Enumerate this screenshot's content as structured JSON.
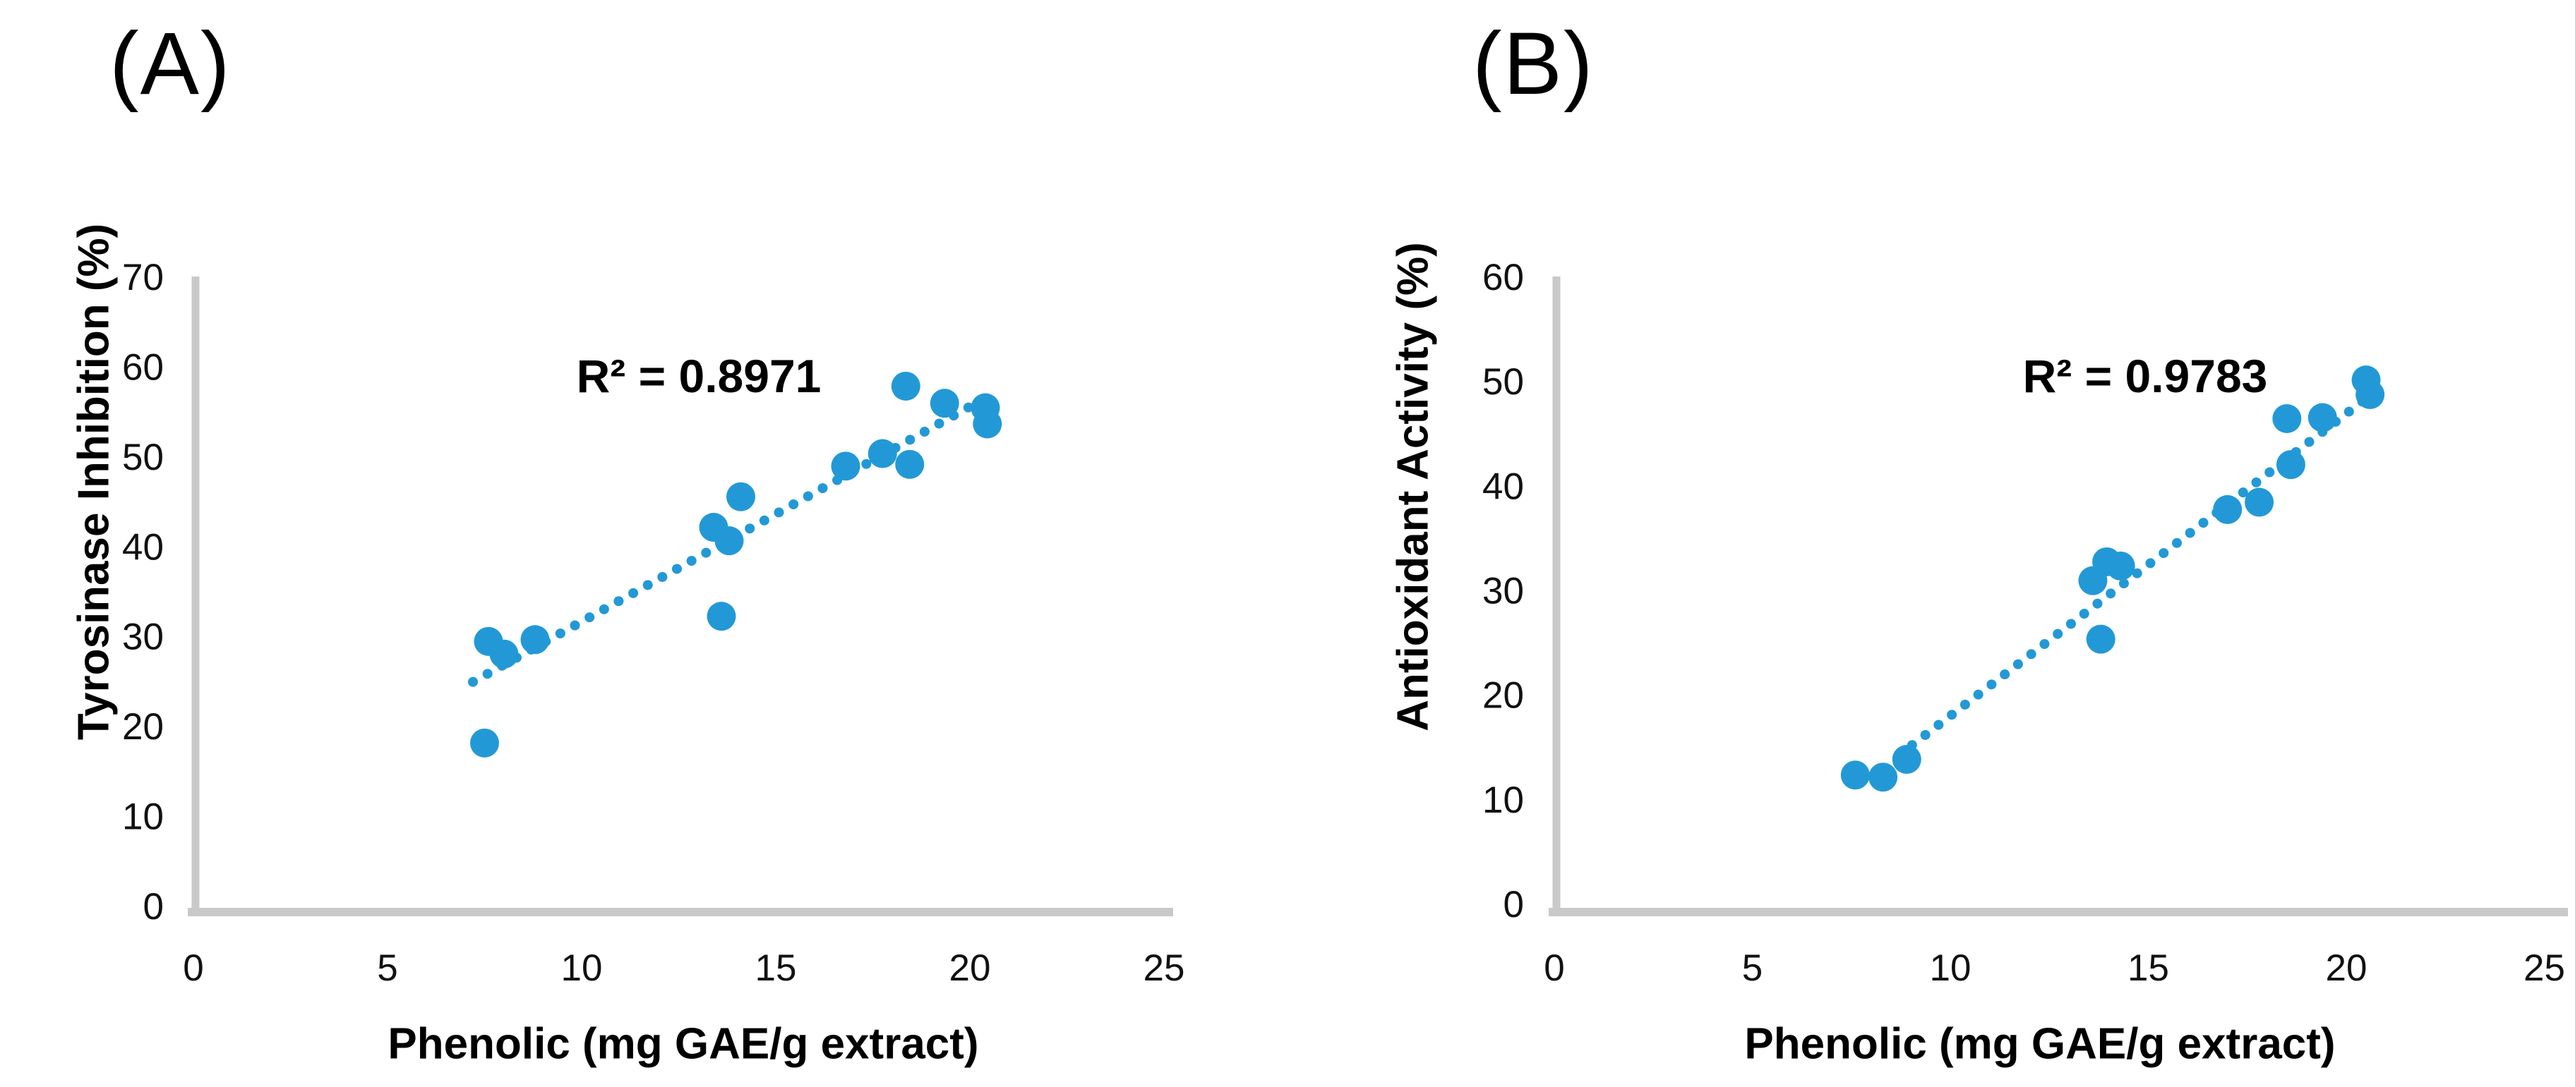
{
  "figure": {
    "background": "#ffffff",
    "axis_line_color": "#c9c9c9",
    "marker_color": "#2299d6",
    "trendline_color": "#2299d6",
    "text_color": "#000000"
  },
  "chart_data": [
    {
      "type": "scatter",
      "panel_label": "(A)",
      "xlabel": "Phenolic (mg GAE/g extract)",
      "ylabel": "Tyrosinase Inhibition (%)",
      "xlim": [
        0,
        25
      ],
      "ylim": [
        0,
        70
      ],
      "xticks": [
        "0",
        "5",
        "10",
        "15",
        "20",
        "25"
      ],
      "yticks": [
        "0",
        "10",
        "20",
        "30",
        "40",
        "50",
        "60",
        "70"
      ],
      "grid": false,
      "legend": "none",
      "r_squared": 0.8971,
      "r_squared_label": "R² = 0.8971",
      "trendline": {
        "style": "dotted",
        "x1": 7.2,
        "y1": 24.9,
        "x2": 20.7,
        "y2": 57.2
      },
      "points": [
        [
          7.5,
          18.1
        ],
        [
          7.6,
          29.4
        ],
        [
          8.0,
          28.0
        ],
        [
          8.8,
          29.6
        ],
        [
          13.4,
          42.1
        ],
        [
          13.6,
          32.2
        ],
        [
          13.8,
          40.6
        ],
        [
          14.1,
          45.5
        ],
        [
          16.8,
          48.9
        ],
        [
          17.75,
          50.3
        ],
        [
          18.35,
          57.8
        ],
        [
          18.45,
          49.1
        ],
        [
          19.35,
          55.9
        ],
        [
          20.4,
          55.4
        ],
        [
          20.45,
          53.6
        ]
      ]
    },
    {
      "type": "scatter",
      "panel_label": "(B)",
      "xlabel": "Phenolic (mg GAE/g extract)",
      "ylabel": "Antioxidant Activity (%)",
      "xlim": [
        0,
        25
      ],
      "ylim": [
        0,
        60
      ],
      "xticks": [
        "0",
        "5",
        "10",
        "15",
        "20",
        "25"
      ],
      "yticks": [
        "0",
        "10",
        "20",
        "30",
        "40",
        "50",
        "60"
      ],
      "grid": false,
      "legend": "none",
      "r_squared": 0.9783,
      "r_squared_label": "R² = 0.9783",
      "trendline": {
        "style": "dotted",
        "x1": 8.7,
        "y1": 14.2,
        "x2": 20.7,
        "y2": 48.9
      },
      "points": [
        [
          7.6,
          12.3
        ],
        [
          8.3,
          12.1
        ],
        [
          8.9,
          13.8
        ],
        [
          13.6,
          30.9
        ],
        [
          13.8,
          25.3
        ],
        [
          13.95,
          32.7
        ],
        [
          14.3,
          32.3
        ],
        [
          17.0,
          37.7
        ],
        [
          17.8,
          38.4
        ],
        [
          18.5,
          46.4
        ],
        [
          18.6,
          42.0
        ],
        [
          19.4,
          46.5
        ],
        [
          20.5,
          50.1
        ],
        [
          20.6,
          48.7
        ]
      ]
    }
  ]
}
